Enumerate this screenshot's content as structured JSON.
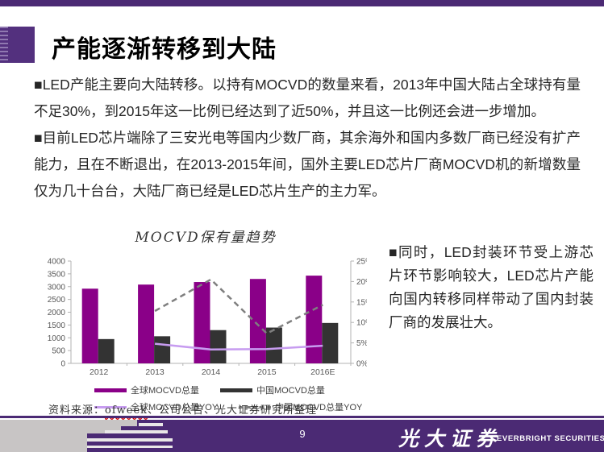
{
  "slide": {
    "title": "产能逐渐转移到大陆",
    "page_number": "9"
  },
  "body": {
    "paragraphs": [
      "■LED产能主要向大陆转移。以持有MOCVD的数量来看，2013年中国大陆占全球持有量不足30%，到2015年这一比例已经达到了近50%，并且这一比例还会进一步增加。",
      "■目前LED芯片端除了三安光电等国内少数厂商，其余海外和国内多数厂商已经没有扩产能力，且在不断退出，在2013-2015年间，国外主要LED芯片厂商MOCVD机的新增数量仅为几十台台，大陆厂商已经是LED芯片生产的主力军。"
    ]
  },
  "side_note": "■同时，LED封装环节受上游芯片环节影响较大，LED芯片产能向国内转移同样带动了国内封装厂商的发展壮大。",
  "source": {
    "prefix": "资料来源：",
    "highlight": "ofweek",
    "rest": "、公司公告、光大证券研究所整理"
  },
  "footer": {
    "brand_cn": "光大证券",
    "brand_en": "EVERBRIGHT SECURITIES"
  },
  "chart_data": {
    "type": "bar",
    "title": "MOCVD保有量趋势",
    "categories": [
      "2012",
      "2013",
      "2014",
      "2015",
      "2016E"
    ],
    "series": [
      {
        "name": "全球MOCVD总量",
        "kind": "bar",
        "axis": "left",
        "color": "#8a0088",
        "values": [
          2920,
          3080,
          3180,
          3300,
          3430
        ]
      },
      {
        "name": "中国MOCVD总量",
        "kind": "bar",
        "axis": "left",
        "color": "#333333",
        "values": [
          950,
          1060,
          1300,
          1400,
          1580
        ]
      },
      {
        "name": "全球MOCVD总量YOY",
        "kind": "line",
        "axis": "right",
        "color": "#c79cf0",
        "dashed": false,
        "values": [
          null,
          4.8,
          3.4,
          3.5,
          4.3
        ]
      },
      {
        "name": "中国MOCVD总量YOY",
        "kind": "line",
        "axis": "right",
        "color": "#7f7f7f",
        "dashed": true,
        "values": [
          null,
          12.8,
          20.5,
          7.3,
          14.3
        ]
      }
    ],
    "left_axis": {
      "min": 0,
      "max": 4000,
      "step": 500
    },
    "right_axis": {
      "min": 0,
      "max": 25,
      "step": 5,
      "suffix": "%"
    },
    "legend_position": "bottom",
    "grid": false
  },
  "colors": {
    "accent_purple": "#4b2a74",
    "title_square": "#53307e",
    "bar_global": "#8a0088",
    "bar_china": "#333333",
    "line_global_yoy": "#c79cf0",
    "line_china_yoy": "#7f7f7f",
    "footer_gray": "#c8c5c5"
  }
}
